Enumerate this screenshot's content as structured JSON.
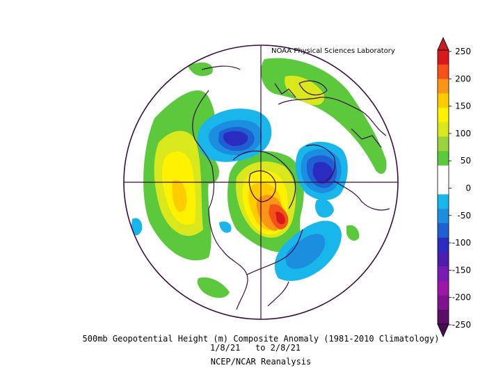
{
  "credit": "NOAA Physical Sciences Laboratory",
  "caption": {
    "line1": "500mb Geopotential Height (m) Composite Anomaly (1981-2010 Climatology)",
    "line2": "1/8/21   to 2/8/21",
    "line3": "NCEP/NCAR Reanalysis"
  },
  "colorbar": {
    "labels": [
      "250",
      "200",
      "150",
      "100",
      "50",
      "0",
      "-50",
      "-100",
      "-150",
      "-200",
      "-250"
    ],
    "colors": [
      "#d7191c",
      "#f4501a",
      "#fb9517",
      "#ffcc00",
      "#fff200",
      "#d8e81c",
      "#9bd33c",
      "#5cc83c",
      "#ffffff",
      "#ffffff",
      "#19b6ec",
      "#1b8ee0",
      "#1e60d2",
      "#2a2cc0",
      "#4b1eb0",
      "#7a1ab5",
      "#9b16a8",
      "#80128c",
      "#5a0e68"
    ],
    "top_arrow": "#c81e1e",
    "bottom_arrow": "#4a0c56"
  }
}
